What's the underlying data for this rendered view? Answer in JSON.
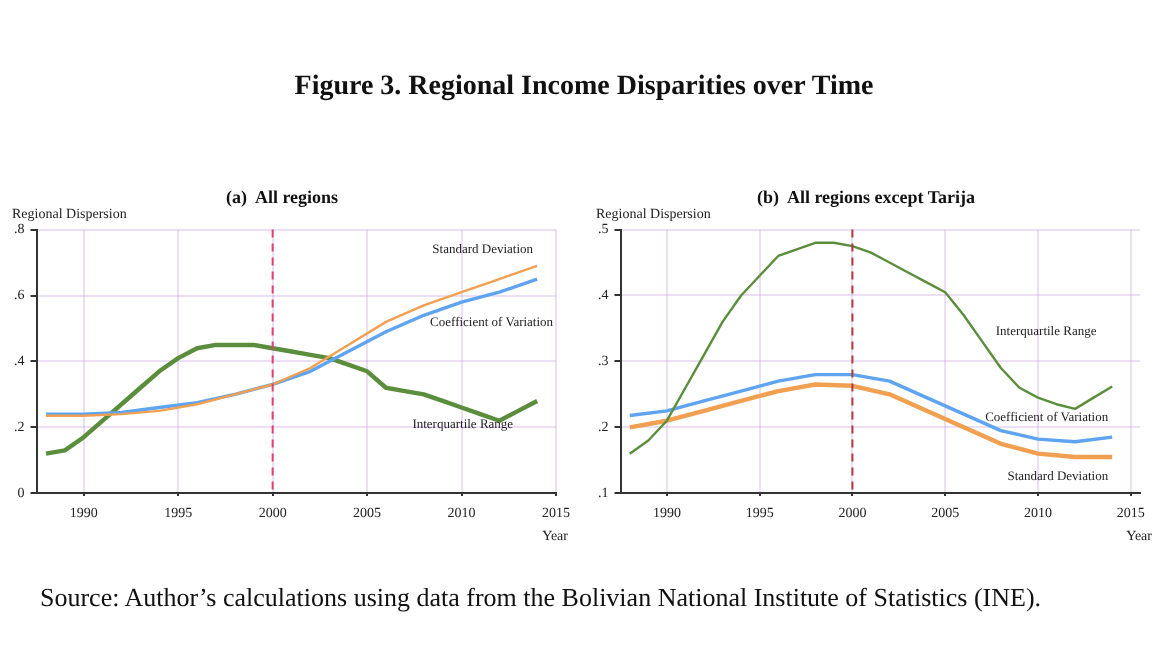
{
  "chart_data": [
    {
      "type": "line",
      "title": "Figure 3. Regional Income Disparities over Time",
      "subtitle": "(a)  All regions",
      "xlabel": "Year",
      "ylabel": "Regional Dispersion",
      "xlim": [
        1987.5,
        2015
      ],
      "xticks": [
        1990,
        1995,
        2000,
        2005,
        2010,
        2015
      ],
      "ylim": [
        0,
        0.8
      ],
      "yticks": [
        {
          "value": 0,
          "label": "0"
        },
        {
          "value": 0.2,
          "label": ".2"
        },
        {
          "value": 0.4,
          "label": ".4"
        },
        {
          "value": 0.6,
          "label": ".6"
        },
        {
          "value": 0.8,
          "label": ".8"
        }
      ],
      "grid": true,
      "legend": false,
      "marker": "none",
      "line_style": "solid",
      "ref_lines": [
        {
          "axis": "x",
          "value": 2000,
          "color": "#e0406a",
          "line_style": "dashed"
        }
      ],
      "series": [
        {
          "name": "Standard Deviation",
          "color": "#f0a050",
          "x": [
            1988,
            1990,
            1992,
            1994,
            1996,
            1998,
            2000,
            2002,
            2004,
            2006,
            2008,
            2010,
            2012,
            2014
          ],
          "values": [
            0.235,
            0.235,
            0.24,
            0.25,
            0.27,
            0.3,
            0.33,
            0.38,
            0.45,
            0.52,
            0.57,
            0.61,
            0.65,
            0.69
          ]
        },
        {
          "name": "Coefficient of Variation",
          "color": "#5ea4f0",
          "x": [
            1988,
            1990,
            1992,
            1994,
            1996,
            1998,
            2000,
            2002,
            2004,
            2006,
            2008,
            2010,
            2012,
            2014
          ],
          "values": [
            0.24,
            0.24,
            0.245,
            0.26,
            0.275,
            0.3,
            0.33,
            0.37,
            0.43,
            0.49,
            0.54,
            0.58,
            0.61,
            0.65
          ]
        },
        {
          "name": "Interquartile Range",
          "color": "#5b8e3c",
          "x": [
            1988,
            1989,
            1990,
            1991,
            1992,
            1993,
            1994,
            1995,
            1996,
            1997,
            1998,
            1999,
            2000,
            2001,
            2002,
            2003,
            2004,
            2005,
            2006,
            2007,
            2008,
            2009,
            2010,
            2011,
            2012,
            2013,
            2014
          ],
          "values": [
            0.12,
            0.13,
            0.17,
            0.22,
            0.27,
            0.32,
            0.37,
            0.41,
            0.44,
            0.45,
            0.45,
            0.45,
            0.44,
            0.43,
            0.42,
            0.41,
            0.39,
            0.37,
            0.32,
            0.31,
            0.3,
            0.28,
            0.26,
            0.24,
            0.22,
            0.25,
            0.28
          ]
        }
      ]
    },
    {
      "type": "line",
      "subtitle": "(b)  All regions except Tarija",
      "xlabel": "Year",
      "ylabel": "Regional Dispersion",
      "xlim": [
        1987.5,
        2015.5
      ],
      "xticks": [
        1990,
        1995,
        2000,
        2005,
        2010,
        2015
      ],
      "ylim": [
        0.1,
        0.5
      ],
      "yticks": [
        {
          "value": 0.1,
          "label": ".1"
        },
        {
          "value": 0.2,
          "label": ".2"
        },
        {
          "value": 0.3,
          "label": ".3"
        },
        {
          "value": 0.4,
          "label": ".4"
        },
        {
          "value": 0.5,
          "label": ".5"
        }
      ],
      "grid": true,
      "legend": false,
      "marker": "none",
      "line_style": "solid",
      "ref_lines": [
        {
          "axis": "x",
          "value": 2000,
          "color": "#b03a3a",
          "line_style": "dashed"
        }
      ],
      "annotations": [
        "Source: Author’s calculations using data from the Bolivian National Institute of Statistics (INE)."
      ],
      "series": [
        {
          "name": "Interquartile Range",
          "color": "#5b8e3c",
          "x": [
            1988,
            1989,
            1990,
            1991,
            1992,
            1993,
            1994,
            1995,
            1996,
            1997,
            1998,
            1999,
            2000,
            2001,
            2002,
            2003,
            2004,
            2005,
            2006,
            2007,
            2008,
            2009,
            2010,
            2011,
            2012,
            2013,
            2014
          ],
          "values": [
            0.16,
            0.18,
            0.21,
            0.26,
            0.31,
            0.36,
            0.4,
            0.43,
            0.46,
            0.47,
            0.48,
            0.48,
            0.475,
            0.465,
            0.45,
            0.435,
            0.42,
            0.405,
            0.37,
            0.33,
            0.29,
            0.26,
            0.245,
            0.235,
            0.228,
            0.245,
            0.262
          ]
        },
        {
          "name": "Coefficient of Variation",
          "color": "#5ea4f0",
          "x": [
            1988,
            1990,
            1992,
            1994,
            1996,
            1998,
            2000,
            2002,
            2004,
            2006,
            2008,
            2010,
            2012,
            2014
          ],
          "values": [
            0.218,
            0.225,
            0.24,
            0.255,
            0.27,
            0.28,
            0.28,
            0.27,
            0.245,
            0.22,
            0.195,
            0.182,
            0.178,
            0.185
          ]
        },
        {
          "name": "Standard Deviation",
          "color": "#f0a050",
          "x": [
            1988,
            1990,
            1992,
            1994,
            1996,
            1998,
            2000,
            2002,
            2004,
            2006,
            2008,
            2010,
            2012,
            2014
          ],
          "values": [
            0.2,
            0.21,
            0.225,
            0.24,
            0.255,
            0.265,
            0.263,
            0.25,
            0.225,
            0.2,
            0.175,
            0.16,
            0.155,
            0.155
          ]
        }
      ]
    }
  ]
}
